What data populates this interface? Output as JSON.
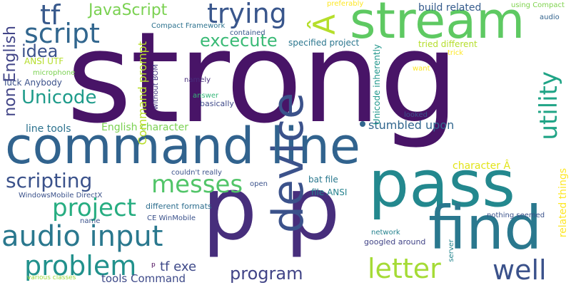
{
  "words": {
    "strong": {
      "text": "strong",
      "color": "#481467"
    },
    "command_line": {
      "text": "command line",
      "color": "#31638e"
    },
    "pass": {
      "text": "pass",
      "color": "#23888e"
    },
    "p_p": {
      "text": "p p",
      "color": "#472e7c"
    },
    "find": {
      "text": "find",
      "color": "#2a788e"
    },
    "stream": {
      "text": "stream",
      "color": "#5ec962"
    },
    "device": {
      "text": "device",
      "color": "#3b528b"
    },
    "tf": {
      "text": "tf",
      "color": "#38598c"
    },
    "trying": {
      "text": "trying",
      "color": "#39568c"
    },
    "script": {
      "text": "script",
      "color": "#31668e"
    },
    "javascript": {
      "text": "JavaScript",
      "color": "#7ad151"
    },
    "a_vert": {
      "text": "Â",
      "color": "#b5de2b"
    },
    "idea": {
      "text": "idea",
      "color": "#3b528b"
    },
    "non_english": {
      "text": "non English",
      "color": "#414487"
    },
    "excecute": {
      "text": "excecute",
      "color": "#3aba76"
    },
    "unicode": {
      "text": "Unicode",
      "color": "#1e9b8a"
    },
    "utility": {
      "text": "utility",
      "color": "#20a486"
    },
    "messes": {
      "text": "messes",
      "color": "#52c569"
    },
    "scripting": {
      "text": "scripting",
      "color": "#3b528b"
    },
    "project": {
      "text": "project",
      "color": "#27ad81"
    },
    "audio_input": {
      "text": "audio input",
      "color": "#2a788e"
    },
    "problem": {
      "text": "problem",
      "color": "#21918c"
    },
    "letter": {
      "text": "letter",
      "color": "#a5db36"
    },
    "well": {
      "text": "well",
      "color": "#3b528b"
    },
    "program": {
      "text": "program",
      "color": "#414487"
    },
    "tf_exe": {
      "text": "tf exe",
      "color": "#3e4989"
    },
    "tools_command": {
      "text": "tools Command",
      "color": "#3e4a89"
    },
    "line_tools": {
      "text": "line tools",
      "color": "#2c728e"
    },
    "english_character": {
      "text": "English character",
      "color": "#7ad151"
    },
    "stumbled_upon": {
      "text": "stumbled upon",
      "color": "#31668e"
    },
    "command_prompt": {
      "text": "Command prompt",
      "color": "#b8de29"
    },
    "build_related": {
      "text": "build related",
      "color": "#365c8d"
    },
    "unicode_inherently": {
      "text": "Unicode inherently",
      "color": "#1f968b"
    },
    "specified_project": {
      "text": "specified project",
      "color": "#2a768e"
    },
    "tried_different": {
      "text": "tried different",
      "color": "#b5de2b"
    },
    "character_a": {
      "text": "character Â",
      "color": "#e2e418"
    },
    "related_things": {
      "text": "related things",
      "color": "#fde725"
    },
    "bat_file": {
      "text": "bat file",
      "color": "#2a788e"
    },
    "file_ansi": {
      "text": "file ANSI",
      "color": "#26828e"
    },
    "different_formats": {
      "text": "different formats",
      "color": "#2e6e8e"
    },
    "nothing_seemed": {
      "text": "nothing seemed",
      "color": "#3b528b"
    },
    "googled_around": {
      "text": "googled around",
      "color": "#414487"
    },
    "network": {
      "text": "network",
      "color": "#26828e"
    },
    "server": {
      "text": "server",
      "color": "#25858e"
    },
    "compact_framework": {
      "text": "Compact Framework",
      "color": "#2c728e"
    },
    "contained": {
      "text": "contained",
      "color": "#38588c"
    },
    "preferably": {
      "text": "preferably",
      "color": "#fde725"
    },
    "using_compact": {
      "text": "using Compact",
      "color": "#7fd34e"
    },
    "audio": {
      "text": "audio",
      "color": "#33638d"
    },
    "trick": {
      "text": "trick",
      "color": "#fde725"
    },
    "want": {
      "text": "want",
      "color": "#fde725"
    },
    "ansi_utf": {
      "text": "ANSI UTF",
      "color": "#b5de2b"
    },
    "microphone": {
      "text": "microphone",
      "color": "#7ad151"
    },
    "luck_anybody": {
      "text": "luck Anybody",
      "color": "#3b528b"
    },
    "without_bom": {
      "text": "without BOM",
      "color": "#443983"
    },
    "namely": {
      "text": "namely",
      "color": "#472d7b"
    },
    "answer": {
      "text": "answer",
      "color": "#35b779"
    },
    "basically": {
      "text": "basically",
      "color": "#3e4989"
    },
    "looked": {
      "text": "looked",
      "color": "#3b528b"
    },
    "couldnt_really": {
      "text": "couldn't really",
      "color": "#3b528b"
    },
    "open": {
      "text": "open",
      "color": "#3b528b"
    },
    "windowsmobile_directx": {
      "text": "WindowsMobile DirectX",
      "color": "#3b528b"
    },
    "name": {
      "text": "name",
      "color": "#3b528b"
    },
    "ce_winmobile": {
      "text": "CE WinMobile",
      "color": "#3b528b"
    },
    "p_small": {
      "text": "p",
      "color": "#440154"
    },
    "various_classes": {
      "text": "various classes",
      "color": "#9dd93b"
    }
  }
}
